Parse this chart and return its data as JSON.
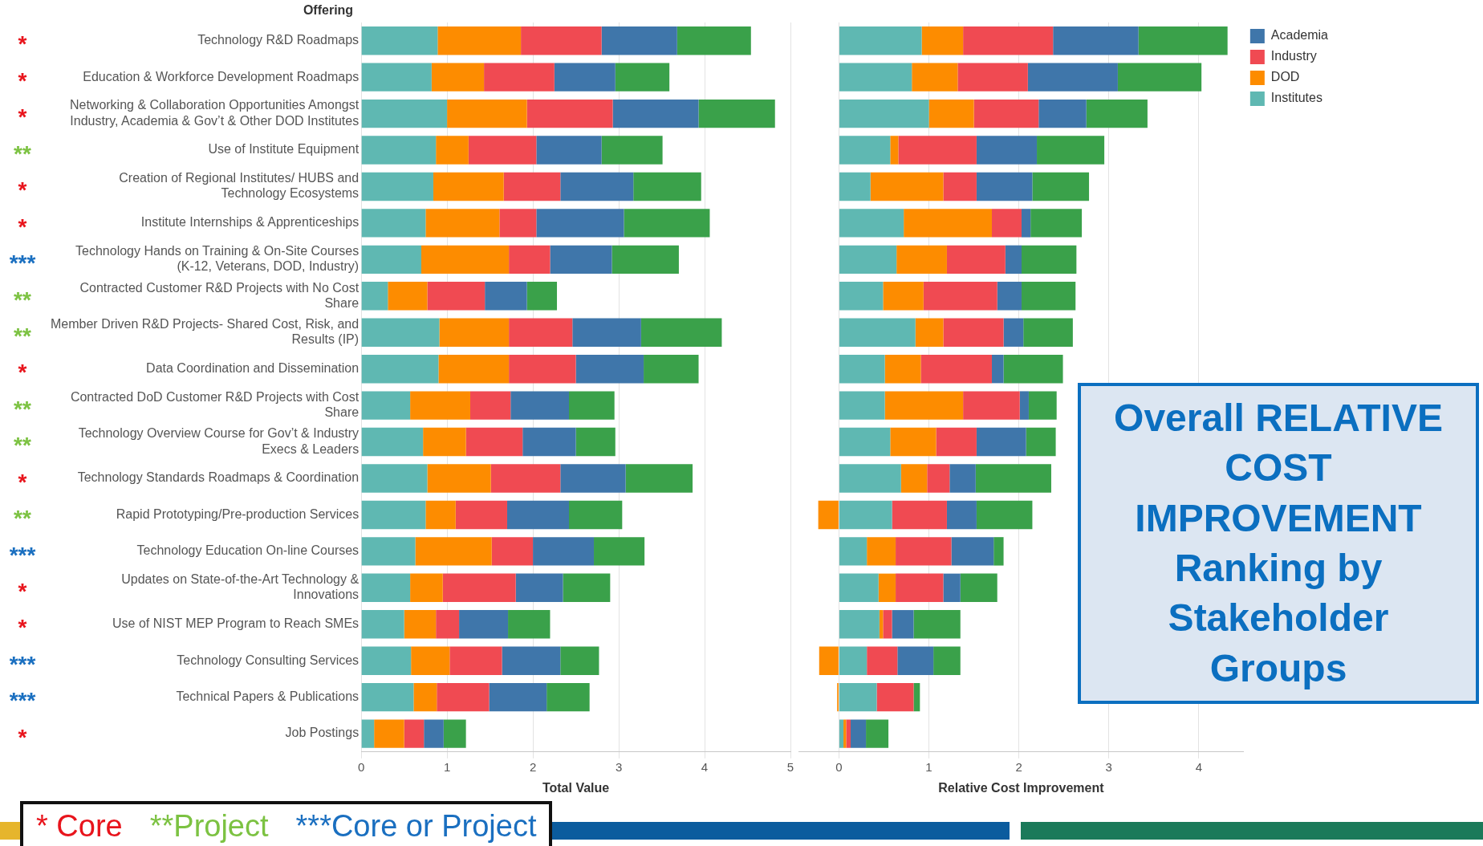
{
  "chart_data": [
    {
      "type": "bar",
      "orientation": "horizontal",
      "stacked": true,
      "ylabel": "Offering",
      "xlabel": "Total Value",
      "categories": [
        "Technology R&D Roadmaps",
        "Education & Workforce Development Roadmaps",
        "Networking & Collaboration Opportunities Amongst Industry, Academia & Gov’t & Other DOD Institutes",
        "Use of Institute Equipment",
        "Creation of Regional Institutes/ HUBS and Technology Ecosystems",
        "Institute Internships & Apprenticeships",
        "Technology Hands on Training & On-Site Courses (K-12, Veterans, DOD, Industry)",
        "Contracted Customer R&D Projects with No Cost Share",
        "Member Driven R&D Projects- Shared Cost, Risk, and Results (IP)",
        "Data Coordination and Dissemination",
        "Contracted DoD Customer R&D Projects with Cost Share",
        "Technology Overview Course for Gov’t & Industry Execs & Leaders",
        "Technology Standards Roadmaps & Coordination",
        "Rapid Prototyping/Pre-production Services",
        "Technology Education On-line Courses",
        "Updates on State-of-the-Art Technology & Innovations",
        "Use of NIST MEP Program to Reach SMEs",
        "Technology Consulting Services",
        "Technical Papers & Publications",
        "Job Postings"
      ],
      "series": [
        {
          "color": "#5fb8b2",
          "values": [
            0.89,
            0.82,
            1.0,
            0.87,
            0.84,
            0.75,
            0.7,
            0.31,
            0.91,
            0.9,
            0.57,
            0.72,
            0.77,
            0.75,
            0.63,
            0.57,
            0.5,
            0.58,
            0.61,
            0.15
          ]
        },
        {
          "color": "#fd8c00",
          "values": [
            0.97,
            0.61,
            0.93,
            0.38,
            0.82,
            0.86,
            1.02,
            0.46,
            0.81,
            0.82,
            0.7,
            0.5,
            0.74,
            0.35,
            0.89,
            0.38,
            0.37,
            0.45,
            0.27,
            0.35
          ]
        },
        {
          "color": "#f04a52",
          "values": [
            0.94,
            0.82,
            1.0,
            0.79,
            0.66,
            0.43,
            0.48,
            0.67,
            0.74,
            0.78,
            0.47,
            0.66,
            0.81,
            0.6,
            0.48,
            0.85,
            0.27,
            0.61,
            0.61,
            0.23
          ]
        },
        {
          "color": "#3f76aa",
          "values": [
            0.88,
            0.71,
            1.0,
            0.76,
            0.85,
            1.02,
            0.72,
            0.49,
            0.8,
            0.79,
            0.68,
            0.62,
            0.76,
            0.72,
            0.71,
            0.55,
            0.57,
            0.68,
            0.67,
            0.23
          ]
        },
        {
          "color": "#3aa14a",
          "values": [
            0.86,
            0.63,
            0.89,
            0.71,
            0.79,
            1.0,
            0.78,
            0.35,
            0.94,
            0.64,
            0.53,
            0.46,
            0.78,
            0.62,
            0.59,
            0.55,
            0.49,
            0.45,
            0.5,
            0.26
          ]
        }
      ],
      "xlim": [
        0,
        5
      ],
      "xticks": [
        0,
        1,
        2,
        3,
        4,
        5
      ],
      "grid": "x",
      "legend": false,
      "annotations": [
        "*",
        "*",
        "*",
        "**",
        "*",
        "*",
        "***",
        "**",
        "**",
        "*",
        "**",
        "**",
        "*",
        "**",
        "***",
        "*",
        "*",
        "***",
        "***",
        "*",
        "* Core",
        "**Project",
        "***Core or Project"
      ]
    },
    {
      "type": "bar",
      "orientation": "horizontal",
      "stacked": true,
      "title": "Overall RELATIVE COST IMPROVEMENT Ranking by Stakeholder Groups",
      "xlabel": "Relative Cost Improvement",
      "series": [
        {
          "name": "Institutes",
          "color": "#5fb8b2",
          "values": [
            0.92,
            0.81,
            1.0,
            0.57,
            0.35,
            0.72,
            0.64,
            0.49,
            0.85,
            0.51,
            0.51,
            0.57,
            0.69,
            0.59,
            0.31,
            0.44,
            0.45,
            0.31,
            0.42,
            0.05
          ]
        },
        {
          "name": "DOD",
          "color": "#fd8c00",
          "values": [
            0.46,
            0.51,
            0.5,
            0.09,
            0.81,
            0.98,
            0.56,
            0.45,
            0.31,
            0.4,
            0.87,
            0.51,
            0.29,
            -0.23,
            0.32,
            0.19,
            0.04,
            -0.22,
            -0.02,
            0.03
          ]
        },
        {
          "name": "Industry",
          "color": "#f04a52",
          "values": [
            1.0,
            0.78,
            0.72,
            0.87,
            0.37,
            0.33,
            0.65,
            0.82,
            0.67,
            0.79,
            0.63,
            0.45,
            0.25,
            0.61,
            0.62,
            0.53,
            0.1,
            0.34,
            0.41,
            0.05
          ]
        },
        {
          "name": "Academia",
          "color": "#3f76aa",
          "values": [
            0.95,
            1.0,
            0.53,
            0.67,
            0.62,
            0.1,
            0.18,
            0.27,
            0.22,
            0.13,
            0.1,
            0.55,
            0.29,
            0.33,
            0.47,
            0.19,
            0.24,
            0.4,
            0,
            0.17
          ]
        },
        {
          "color": "#3aa14a",
          "values": [
            0.99,
            0.93,
            0.68,
            0.75,
            0.63,
            0.57,
            0.61,
            0.6,
            0.55,
            0.66,
            0.31,
            0.33,
            0.84,
            0.62,
            0.11,
            0.41,
            0.52,
            0.3,
            0.07,
            0.25
          ]
        }
      ],
      "xlim": [
        -0.45,
        4.5
      ],
      "xticks": [
        0,
        1,
        2,
        3,
        4
      ],
      "grid": "x",
      "legend": "right",
      "tick_labels": "x"
    }
  ]
}
